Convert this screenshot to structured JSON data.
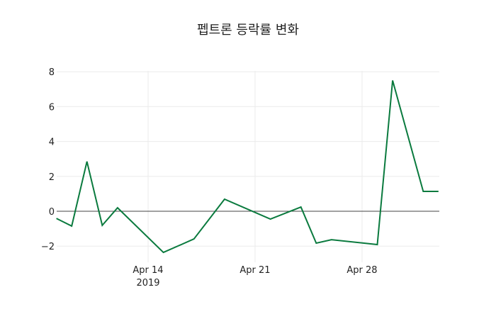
{
  "chart_data": {
    "type": "line",
    "title": "펩트론 등락률 변화",
    "xlabel": "",
    "ylabel": "",
    "x": [
      "2019-04-08",
      "2019-04-09",
      "2019-04-10",
      "2019-04-11",
      "2019-04-12",
      "2019-04-15",
      "2019-04-17",
      "2019-04-19",
      "2019-04-22",
      "2019-04-24",
      "2019-04-25",
      "2019-04-26",
      "2019-04-29",
      "2019-04-30",
      "2019-05-02",
      "2019-05-03"
    ],
    "series": [
      {
        "name": "등락률",
        "color": "#0a7a3e",
        "values": [
          -0.41,
          -0.85,
          2.85,
          -0.81,
          0.2,
          -2.36,
          -1.59,
          0.69,
          -0.45,
          0.24,
          -1.83,
          -1.63,
          -1.91,
          7.5,
          1.14,
          1.14
        ]
      }
    ],
    "ylim": [
      -3,
      8.2
    ],
    "yticks": [
      -2,
      0,
      2,
      4,
      6,
      8
    ],
    "ytick_labels": [
      "−2",
      "0",
      "2",
      "4",
      "6",
      "8"
    ],
    "xticks": [
      "2019-04-14",
      "2019-04-21",
      "2019-04-28"
    ],
    "xtick_labels": [
      "Apr 14",
      "Apr 21",
      "Apr 28"
    ],
    "xtick_sublabel": "2019",
    "grid": true,
    "legend": false
  }
}
